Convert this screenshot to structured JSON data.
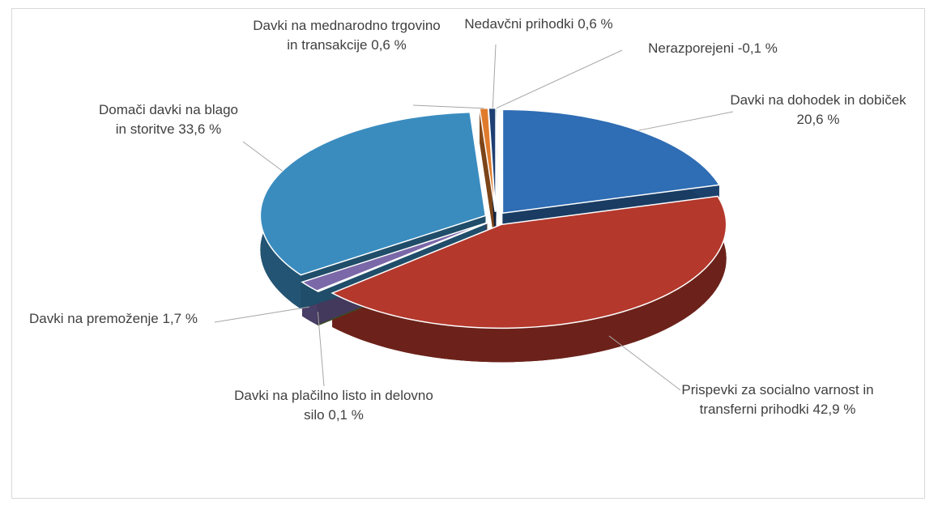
{
  "chart_data": {
    "type": "pie",
    "categories": [
      "Davki na dohodek in dobiček",
      "Prispevki za socialno varnost in transferni prihodki",
      "Davki na plačilno listo in delovno silo",
      "Davki na premoženje",
      "Domači davki na blago in storitve",
      "Davki na mednarodno trgovino in transakcije",
      "Nedavčni prihodki",
      "Nerazporejeni"
    ],
    "values": [
      20.6,
      42.9,
      0.1,
      1.7,
      33.6,
      0.6,
      0.6,
      -0.1
    ],
    "value_labels": [
      "20,6 %",
      "42,9 %",
      "0,1 %",
      "1,7 %",
      "33,6 %",
      "0,6 %",
      "0,6 %",
      "-0,1 %"
    ],
    "colors": [
      "#2f6db4",
      "#b4382c",
      "#6f8f3c",
      "#7a68a8",
      "#3a8cbf",
      "#e07b2c",
      "#1f3f72",
      "#2b5e9c"
    ]
  }
}
